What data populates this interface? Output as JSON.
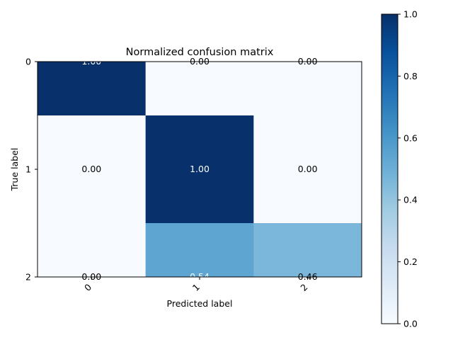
{
  "chart_data": {
    "type": "heatmap",
    "title": "Normalized confusion matrix",
    "xlabel": "Predicted label",
    "ylabel": "True label",
    "x_categories": [
      "0",
      "1",
      "2"
    ],
    "y_categories": [
      "0",
      "1",
      "2"
    ],
    "values": [
      [
        1.0,
        0.0,
        0.0
      ],
      [
        0.0,
        1.0,
        0.0
      ],
      [
        0.0,
        0.54,
        0.46
      ]
    ],
    "cell_labels": [
      [
        "1.00",
        "0.00",
        "0.00"
      ],
      [
        "0.00",
        "1.00",
        "0.00"
      ],
      [
        "0.00",
        "0.54",
        "0.46"
      ]
    ],
    "colormap": "Blues",
    "colorbar": {
      "range": [
        0.0,
        1.0
      ],
      "ticks": [
        0.0,
        0.2,
        0.4,
        0.6,
        0.8,
        1.0
      ],
      "tick_labels": [
        "0.0",
        "0.2",
        "0.4",
        "0.6",
        "0.8",
        "1.0"
      ]
    },
    "grid": false,
    "colors": {
      "low": "#f7fbff",
      "high": "#08306b",
      "text_dark": "#000000",
      "text_light": "#ffffff"
    }
  }
}
